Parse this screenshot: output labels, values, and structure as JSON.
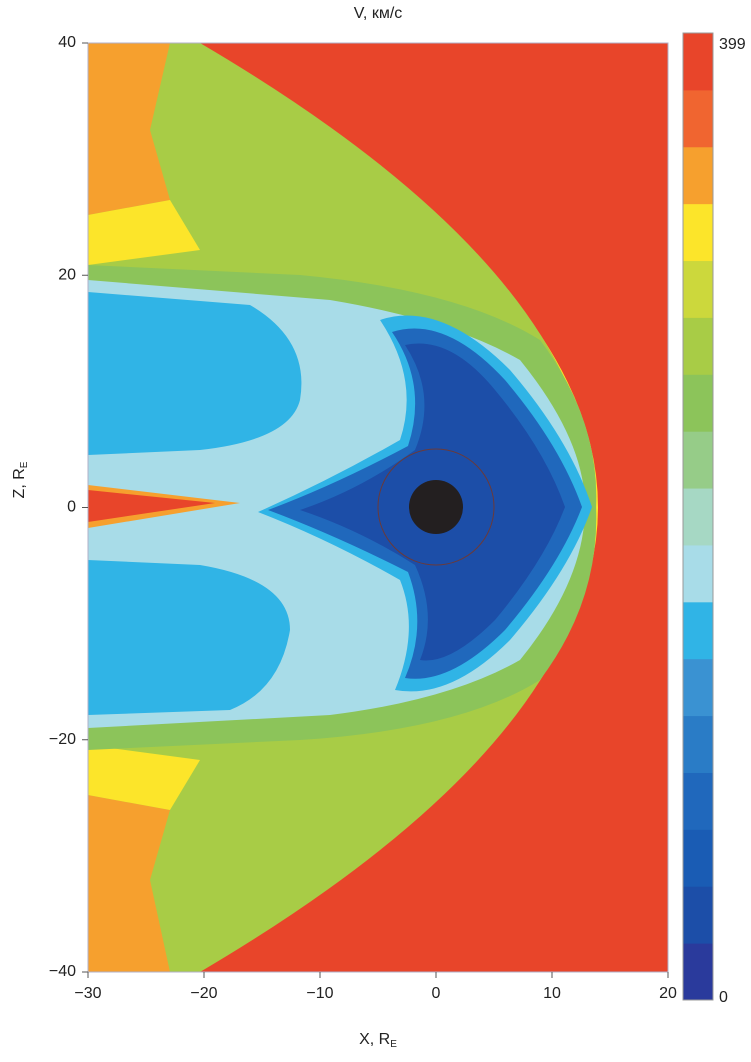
{
  "chart_data": {
    "type": "contour",
    "title": "V, км/с",
    "xlabel": "X, R",
    "xlabel_sub": "E",
    "ylabel": "Z, R",
    "ylabel_sub": "E",
    "xlim": [
      -30,
      20
    ],
    "ylim": [
      -40,
      40
    ],
    "xticks": [
      {
        "value": -30,
        "label": "−30"
      },
      {
        "value": -20,
        "label": "−20"
      },
      {
        "value": -10,
        "label": "−10"
      },
      0,
      10,
      20
    ],
    "yticks": [
      {
        "value": -40,
        "label": "−40"
      },
      {
        "value": -20,
        "label": "−20"
      },
      0,
      20,
      40
    ],
    "colorbar": {
      "lim": [
        0,
        399
      ],
      "ticks": [
        0,
        399
      ],
      "colors": [
        "#2a3a9c",
        "#1c4ea8",
        "#1a5cb4",
        "#2068bc",
        "#2a7cc6",
        "#3a92d2",
        "#30b4e6",
        "#a8dce8",
        "#a6d8c4",
        "#96cc88",
        "#8cc45a",
        "#a8cc46",
        "#ccd83c",
        "#fce52a",
        "#f6a02e",
        "#f06530",
        "#e8452a"
      ]
    }
  }
}
